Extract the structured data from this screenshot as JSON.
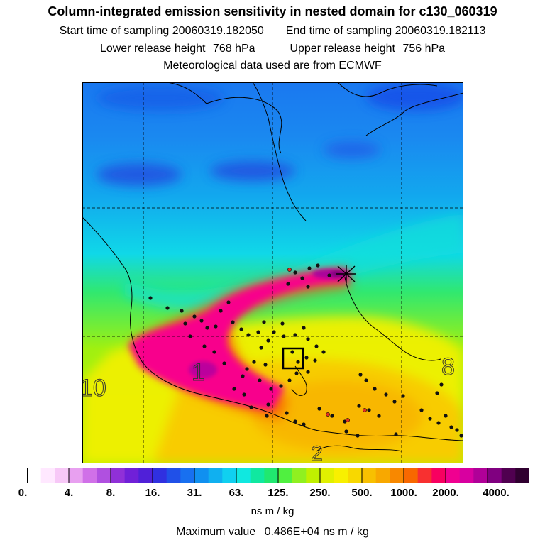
{
  "header": {
    "title": "Column-integrated emission sensitivity in nested domain for c130_060319",
    "start_label": "Start time of sampling",
    "start_value": "20060319.182050",
    "end_label": "End time of sampling",
    "end_value": "20060319.182113",
    "lower_label": "Lower release height",
    "lower_value": "768 hPa",
    "upper_label": "Upper release height",
    "upper_value": "756 hPa",
    "met_line": "Meteorological data used are from ECMWF"
  },
  "map": {
    "labels": [
      "10",
      "1",
      "8",
      "2"
    ],
    "release_marker": "asterisk-icon",
    "target_marker": "square-box-icon"
  },
  "colorbar": {
    "tick_labels": [
      "0.",
      "4.",
      "8.",
      "16.",
      "31.",
      "63.",
      "125.",
      "250.",
      "500.",
      "1000.",
      "2000.",
      "4000."
    ],
    "colors": [
      "#ffffff",
      "#ffe8ff",
      "#f7c8f7",
      "#e8a0f0",
      "#d070e8",
      "#b050e0",
      "#9030d8",
      "#7020d8",
      "#5020d8",
      "#3030e0",
      "#2050e8",
      "#1870f0",
      "#1090f0",
      "#10b0f0",
      "#10d0f0",
      "#10e8e0",
      "#10e8a0",
      "#20e870",
      "#50f040",
      "#90f020",
      "#c0f000",
      "#e0f000",
      "#f8f000",
      "#f8d800",
      "#f8c000",
      "#f8a800",
      "#f88800",
      "#f86800",
      "#f83030",
      "#f80060",
      "#f00090",
      "#d800a0",
      "#b00098",
      "#800080",
      "#500050",
      "#300030"
    ],
    "units": "ns m / kg"
  },
  "footer": {
    "max_label": "Maximum value",
    "max_value": "0.486E+04 ns m / kg"
  }
}
